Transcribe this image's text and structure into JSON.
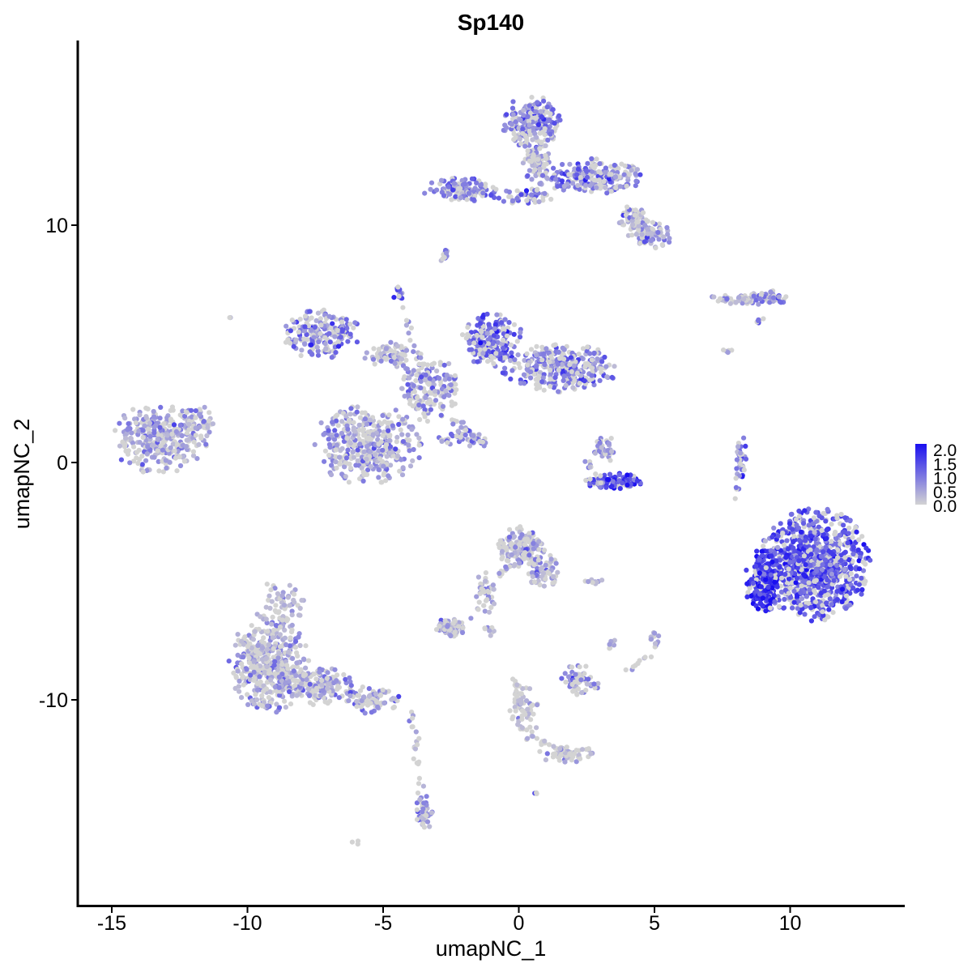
{
  "chart_data": {
    "type": "scatter",
    "title": "Sp140",
    "xlabel": "umapNC_1",
    "ylabel": "umapNC_2",
    "xlim": [
      -16.5,
      14.5
    ],
    "ylim": [
      -18.5,
      17.5
    ],
    "xticks": [
      -15,
      -10,
      -5,
      0,
      5,
      10
    ],
    "yticks": [
      -10,
      0,
      10
    ],
    "grid": false,
    "color_scale": {
      "low_color": "#d3d3d3",
      "high_color": "#1a0ff0",
      "min": 0,
      "max": 2,
      "legend_ticks": [
        "2.0",
        "1.5",
        "1.0",
        "0.5",
        "0.0"
      ],
      "legend_position": "right"
    },
    "clusters": [
      {
        "cx": -13.2,
        "cy": 1.0,
        "rx": 1.6,
        "ry": 1.3,
        "n": 320,
        "expr": 0.55
      },
      {
        "cx": -11.8,
        "cy": 1.8,
        "rx": 0.5,
        "ry": 0.6,
        "n": 40,
        "expr": 0.5
      },
      {
        "cx": -9.2,
        "cy": -8.5,
        "rx": 1.3,
        "ry": 1.8,
        "n": 420,
        "expr": 0.5
      },
      {
        "cx": -7.5,
        "cy": -9.4,
        "rx": 1.2,
        "ry": 0.7,
        "n": 160,
        "expr": 0.55
      },
      {
        "cx": -5.5,
        "cy": -10.0,
        "rx": 1.0,
        "ry": 0.5,
        "n": 80,
        "expr": 0.65
      },
      {
        "cx": -8.8,
        "cy": -6.0,
        "rx": 0.8,
        "ry": 0.9,
        "n": 60,
        "expr": 0.2
      },
      {
        "cx": -3.5,
        "cy": -14.8,
        "rx": 0.3,
        "ry": 0.7,
        "n": 40,
        "expr": 0.7
      },
      {
        "cx": -5.6,
        "cy": 0.8,
        "rx": 1.8,
        "ry": 1.5,
        "n": 380,
        "expr": 0.55
      },
      {
        "cx": -7.3,
        "cy": 5.4,
        "rx": 1.3,
        "ry": 0.9,
        "n": 200,
        "expr": 0.9
      },
      {
        "cx": -4.8,
        "cy": 4.5,
        "rx": 0.8,
        "ry": 0.5,
        "n": 70,
        "expr": 0.5
      },
      {
        "cx": -3.3,
        "cy": 3.1,
        "rx": 1.0,
        "ry": 1.2,
        "n": 160,
        "expr": 0.6
      },
      {
        "cx": -1.0,
        "cy": 5.2,
        "rx": 1.0,
        "ry": 1.0,
        "n": 200,
        "expr": 1.1
      },
      {
        "cx": 1.5,
        "cy": 4.0,
        "rx": 1.9,
        "ry": 0.9,
        "n": 300,
        "expr": 0.9
      },
      {
        "cx": -4.4,
        "cy": 7.1,
        "rx": 0.2,
        "ry": 0.3,
        "n": 15,
        "expr": 1.3
      },
      {
        "cx": -2.0,
        "cy": 1.0,
        "rx": 0.9,
        "ry": 0.3,
        "n": 30,
        "expr": 0.8
      },
      {
        "cx": 3.6,
        "cy": -0.8,
        "rx": 1.0,
        "ry": 0.3,
        "n": 100,
        "expr": 1.5
      },
      {
        "cx": 3.1,
        "cy": 0.6,
        "rx": 0.4,
        "ry": 0.6,
        "n": 40,
        "expr": 0.7
      },
      {
        "cx": 0.5,
        "cy": 14.3,
        "rx": 1.0,
        "ry": 1.0,
        "n": 220,
        "expr": 0.8
      },
      {
        "cx": 0.7,
        "cy": 12.6,
        "rx": 0.5,
        "ry": 0.8,
        "n": 80,
        "expr": 0.5
      },
      {
        "cx": 2.8,
        "cy": 12.0,
        "rx": 1.6,
        "ry": 0.7,
        "n": 200,
        "expr": 0.8
      },
      {
        "cx": -2.2,
        "cy": 11.5,
        "rx": 1.2,
        "ry": 0.5,
        "n": 120,
        "expr": 0.9
      },
      {
        "cx": 0.2,
        "cy": 11.2,
        "rx": 1.0,
        "ry": 0.3,
        "n": 50,
        "expr": 0.8
      },
      {
        "cx": 4.9,
        "cy": 9.6,
        "rx": 0.8,
        "ry": 0.5,
        "n": 90,
        "expr": 0.5
      },
      {
        "cx": 4.2,
        "cy": 10.3,
        "rx": 0.5,
        "ry": 0.5,
        "n": 50,
        "expr": 0.4
      },
      {
        "cx": -2.7,
        "cy": 8.7,
        "rx": 0.2,
        "ry": 0.3,
        "n": 12,
        "expr": 0.8
      },
      {
        "cx": 8.4,
        "cy": 6.9,
        "rx": 1.2,
        "ry": 0.2,
        "n": 60,
        "expr": 0.4
      },
      {
        "cx": 9.3,
        "cy": 6.9,
        "rx": 0.6,
        "ry": 0.3,
        "n": 30,
        "expr": 0.9
      },
      {
        "cx": 8.8,
        "cy": 6.0,
        "rx": 0.2,
        "ry": 0.2,
        "n": 6,
        "expr": 0.9
      },
      {
        "cx": 7.7,
        "cy": 4.7,
        "rx": 0.15,
        "ry": 0.2,
        "n": 5,
        "expr": 0.5
      },
      {
        "cx": 8.2,
        "cy": 0.2,
        "rx": 0.2,
        "ry": 0.8,
        "n": 30,
        "expr": 0.8
      },
      {
        "cx": 10.9,
        "cy": -4.3,
        "rx": 1.8,
        "ry": 2.1,
        "n": 900,
        "expr": 1.2
      },
      {
        "cx": 9.0,
        "cy": -5.0,
        "rx": 0.6,
        "ry": 1.2,
        "n": 200,
        "expr": 1.6
      },
      {
        "cx": 0.1,
        "cy": -3.6,
        "rx": 0.8,
        "ry": 0.8,
        "n": 150,
        "expr": 0.45
      },
      {
        "cx": 0.9,
        "cy": -4.6,
        "rx": 0.5,
        "ry": 0.7,
        "n": 60,
        "expr": 0.35
      },
      {
        "cx": -2.5,
        "cy": -6.9,
        "rx": 0.5,
        "ry": 0.4,
        "n": 60,
        "expr": 0.45
      },
      {
        "cx": -1.3,
        "cy": -5.5,
        "rx": 0.4,
        "ry": 0.8,
        "n": 30,
        "expr": 0.4
      },
      {
        "cx": 2.2,
        "cy": -9.2,
        "rx": 0.7,
        "ry": 0.6,
        "n": 70,
        "expr": 0.5
      },
      {
        "cx": 0.2,
        "cy": -10.6,
        "rx": 0.5,
        "ry": 1.0,
        "n": 50,
        "expr": 0.15
      },
      {
        "cx": 1.8,
        "cy": -12.3,
        "rx": 1.0,
        "ry": 0.3,
        "n": 40,
        "expr": 0.25
      },
      {
        "cx": 5.0,
        "cy": -7.5,
        "rx": 0.2,
        "ry": 0.4,
        "n": 12,
        "expr": 0.6
      },
      {
        "cx": 3.4,
        "cy": -7.7,
        "rx": 0.2,
        "ry": 0.3,
        "n": 8,
        "expr": 0.4
      },
      {
        "cx": 2.7,
        "cy": -5.0,
        "rx": 0.4,
        "ry": 0.15,
        "n": 10,
        "expr": 0.3
      },
      {
        "cx": -1.1,
        "cy": -7.1,
        "rx": 0.3,
        "ry": 0.2,
        "n": 8,
        "expr": 0.3
      },
      {
        "cx": 0.6,
        "cy": -13.9,
        "rx": 0.1,
        "ry": 0.1,
        "n": 3,
        "expr": 0.8
      },
      {
        "cx": -6.0,
        "cy": -16.0,
        "rx": 0.15,
        "ry": 0.1,
        "n": 3,
        "expr": 0.9
      },
      {
        "cx": -10.6,
        "cy": 6.1,
        "rx": 0.1,
        "ry": 0.1,
        "n": 2,
        "expr": 0.1
      }
    ],
    "branches": [
      {
        "from": [
          -4.3,
          6.6
        ],
        "to": [
          -3.2,
          2.6
        ],
        "n": 25,
        "expr": 0.5
      },
      {
        "from": [
          -2.5,
          1.9
        ],
        "to": [
          -1.2,
          0.7
        ],
        "n": 25,
        "expr": 0.8
      },
      {
        "from": [
          -4.0,
          -10.5
        ],
        "to": [
          -3.5,
          -14.5
        ],
        "n": 25,
        "expr": 0.4
      },
      {
        "from": [
          -1.8,
          -6.7
        ],
        "to": [
          0.0,
          -3.5
        ],
        "n": 25,
        "expr": 0.5
      },
      {
        "from": [
          -0.2,
          -9.2
        ],
        "to": [
          0.3,
          -11.3
        ],
        "n": 20,
        "expr": 0.1
      },
      {
        "from": [
          0.3,
          -11.5
        ],
        "to": [
          2.6,
          -12.6
        ],
        "n": 25,
        "expr": 0.2
      },
      {
        "from": [
          5.0,
          -8.0
        ],
        "to": [
          4.0,
          -8.8
        ],
        "n": 10,
        "expr": 0.4
      },
      {
        "from": [
          2.5,
          0.2
        ],
        "to": [
          3.0,
          -1.0
        ],
        "n": 15,
        "expr": 0.6
      },
      {
        "from": [
          8.1,
          -0.5
        ],
        "to": [
          8.0,
          -1.5
        ],
        "n": 6,
        "expr": 0.6
      },
      {
        "from": [
          -3.0,
          11.3
        ],
        "to": [
          -1.0,
          11.3
        ],
        "n": 15,
        "expr": 0.8
      }
    ]
  }
}
